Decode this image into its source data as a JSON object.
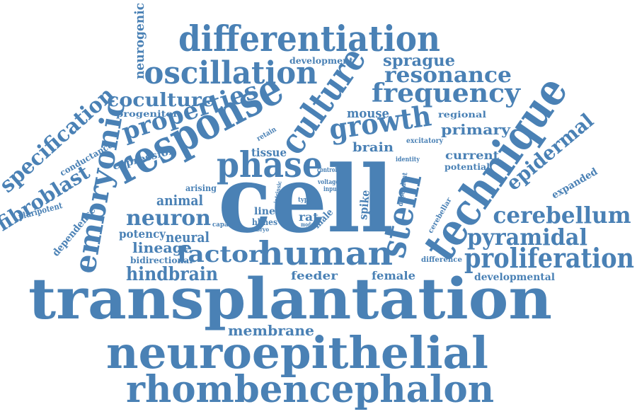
{
  "color": "#4a81b5",
  "background": "#ffffff",
  "words": [
    "cell",
    "transplantation",
    "neuroepithelial",
    "rhombencephalon",
    "response",
    "technique",
    "stem",
    "culture",
    "differentiation",
    "oscillation",
    "phase",
    "human",
    "embryonic",
    "growth",
    "proliferation",
    "frequency",
    "resonance",
    "properties",
    "specification",
    "coculture",
    "cerebellum",
    "pyramidal",
    "epidermal",
    "neuron",
    "factor",
    "fibroblast",
    "hindbrain",
    "sprague",
    "membrane",
    "neurogenic",
    "animal",
    "neural",
    "lineage",
    "potency",
    "mouse",
    "primary",
    "brain",
    "current",
    "tissue",
    "expression",
    "spike",
    "feeder",
    "female",
    "development",
    "progenitor",
    "regional",
    "potential",
    "developmental",
    "expanded",
    "conductance",
    "dependence",
    "pluripotent",
    "arising",
    "bidirectional",
    "line",
    "hbnes",
    "rat",
    "male",
    "type",
    "capacity",
    "intrinsic",
    "control",
    "voltage",
    "input",
    "retain",
    "excitatory",
    "identity",
    "dependent",
    "cerebellar",
    "difference",
    "model",
    "embryo"
  ]
}
